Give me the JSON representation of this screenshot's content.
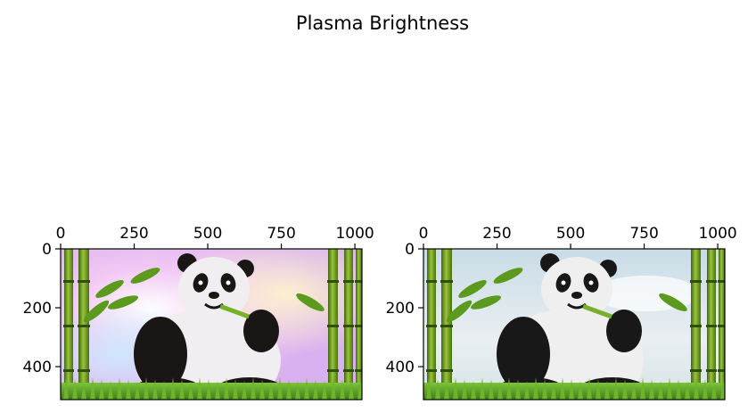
{
  "figure": {
    "title": "Plasma Brightness"
  },
  "chart_data": [
    {
      "type": "image",
      "panel": "left",
      "description_colors": {
        "sky": "#f3c6f2",
        "bamboo": "#6f9b1f",
        "grass": "#5aa02a",
        "fur_dark": "#1a1616",
        "fur_light": "#f0eef0"
      },
      "xaxis_position": "top",
      "xlim": [
        0,
        1024
      ],
      "ylim": [
        512,
        0
      ],
      "xticks": [
        0,
        250,
        500,
        750,
        1000
      ],
      "yticks": [
        0,
        200,
        400
      ],
      "xticklabels": [
        "0",
        "250",
        "500",
        "750",
        "1000"
      ],
      "yticklabels": [
        "0",
        "200",
        "400"
      ]
    },
    {
      "type": "image",
      "panel": "right",
      "description_colors": {
        "sky": "#dfe9ef",
        "bamboo": "#6f9b1f",
        "grass": "#5aa02a",
        "fur_dark": "#181818",
        "fur_light": "#efefef"
      },
      "xaxis_position": "top",
      "xlim": [
        0,
        1024
      ],
      "ylim": [
        512,
        0
      ],
      "xticks": [
        0,
        250,
        500,
        750,
        1000
      ],
      "yticks": [
        0,
        200,
        400
      ],
      "xticklabels": [
        "0",
        "250",
        "500",
        "750",
        "1000"
      ],
      "yticklabels": [
        "0",
        "200",
        "400"
      ]
    }
  ]
}
